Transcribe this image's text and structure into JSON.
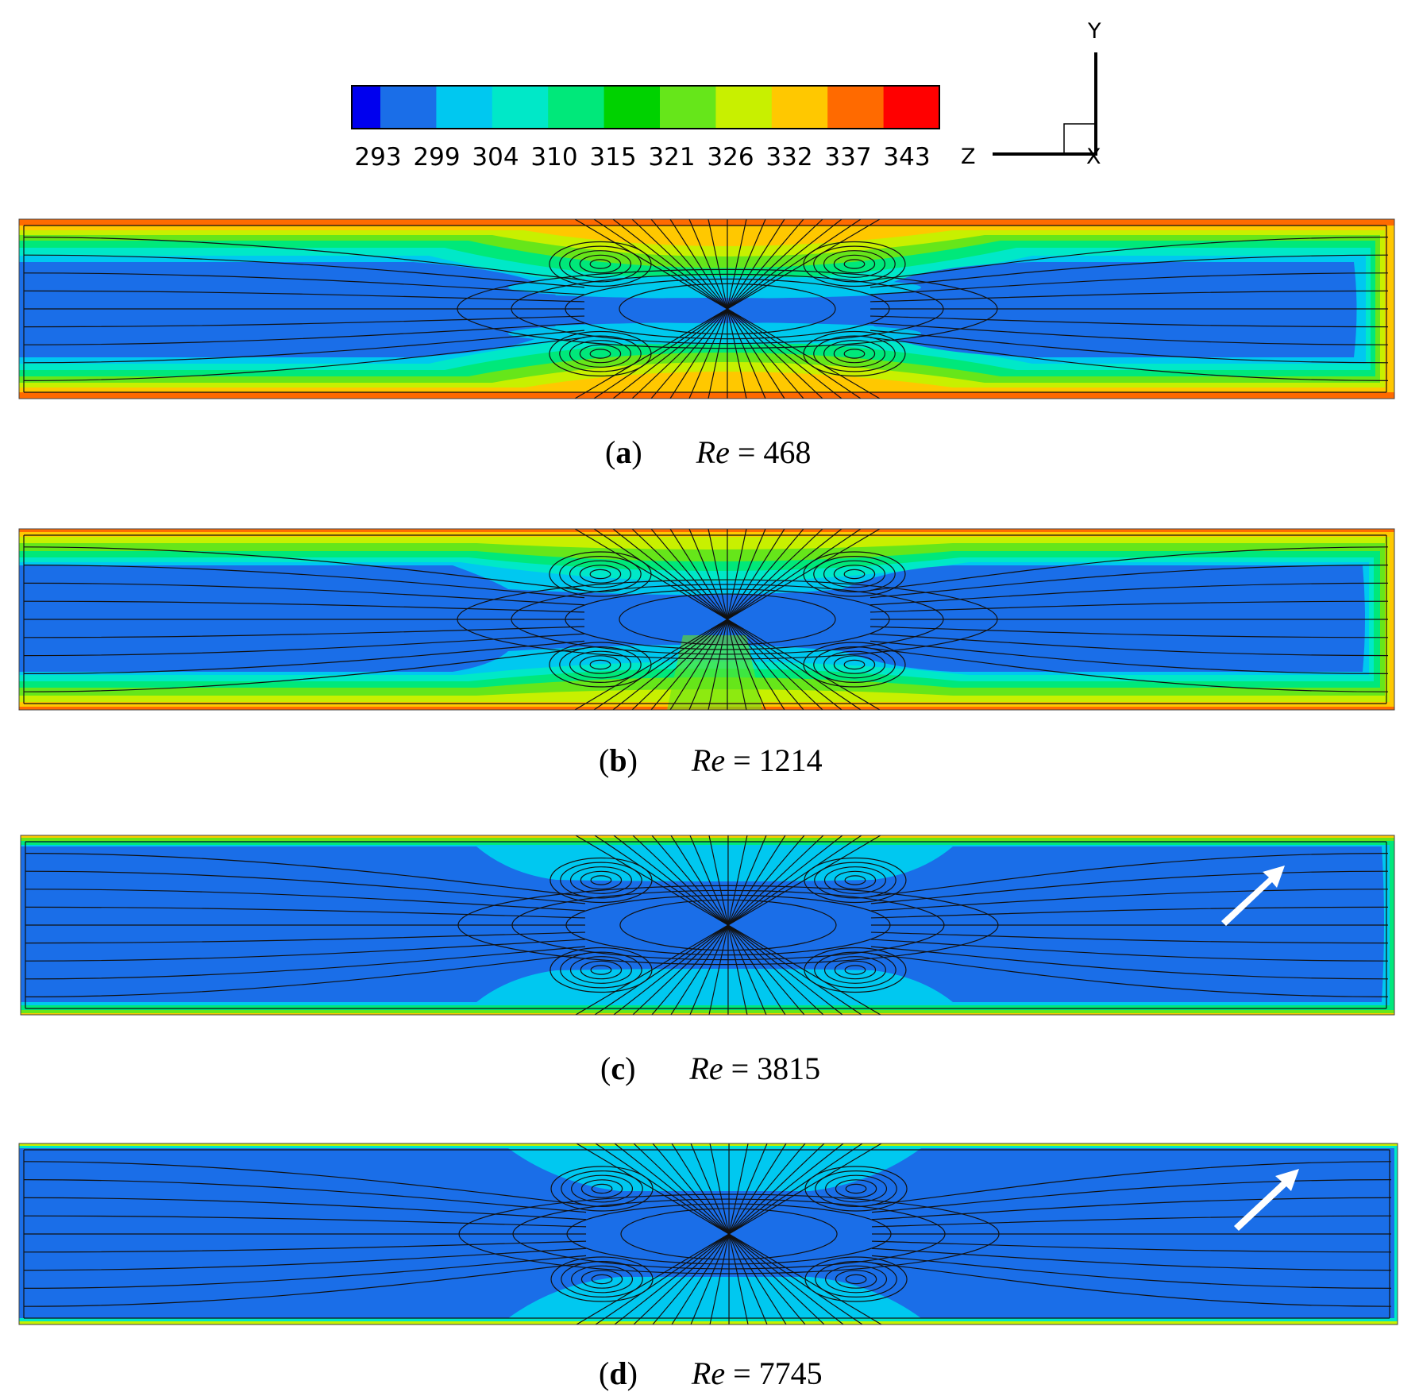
{
  "colorbar": {
    "ticks": [
      "293",
      "299",
      "304",
      "310",
      "315",
      "321",
      "326",
      "332",
      "337",
      "343"
    ],
    "colors": [
      "#0000ee",
      "#1a6ee8",
      "#00c8f0",
      "#00e8c8",
      "#00e87a",
      "#00d200",
      "#66e61a",
      "#c8f000",
      "#ffc800",
      "#ff6a00",
      "#ff0000"
    ]
  },
  "axes": {
    "y": "Y",
    "z": "Z",
    "x": "X"
  },
  "panels": [
    {
      "letter": "a",
      "re_symbol": "Re",
      "equals": "=",
      "re_value": "468",
      "style": "warm"
    },
    {
      "letter": "b",
      "re_symbol": "Re",
      "equals": "=",
      "re_value": "1214",
      "style": "mid"
    },
    {
      "letter": "c",
      "re_symbol": "Re",
      "equals": "=",
      "re_value": "3815",
      "style": "cool",
      "arrow": true
    },
    {
      "letter": "d",
      "re_symbol": "Re",
      "equals": "=",
      "re_value": "7745",
      "style": "cold",
      "arrow": true
    }
  ]
}
